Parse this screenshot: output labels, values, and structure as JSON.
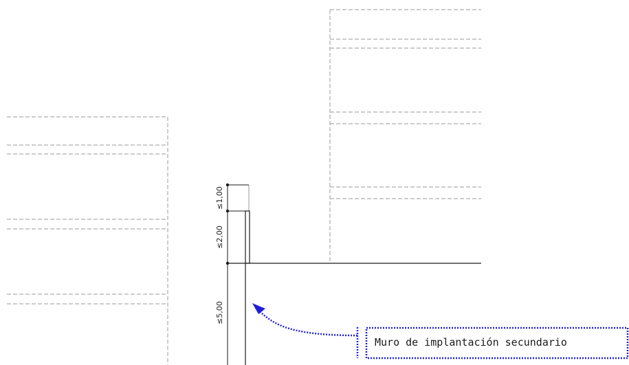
{
  "dimensions": {
    "upper_limit": "≤1,00",
    "middle_limit": "≤2,00",
    "lower_limit": "≤5,00"
  },
  "callout": {
    "label": "Muro de implantación secundario"
  },
  "colors": {
    "callout": "#1f1fd6",
    "outline": "#9a9a9a",
    "solid": "#1a1a1a"
  }
}
